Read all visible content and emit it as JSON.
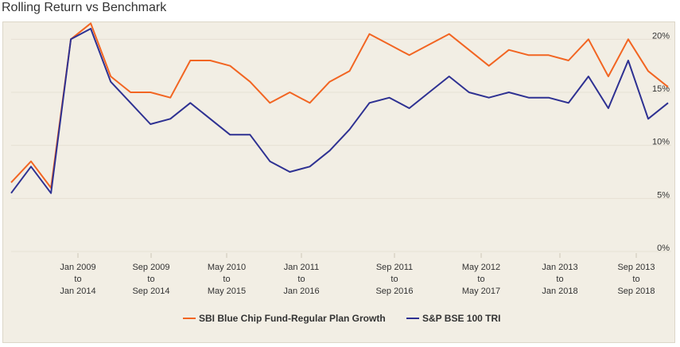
{
  "page_title": "Rolling Return vs Benchmark",
  "colors": {
    "fund": "#f26522",
    "benchmark": "#2e3192",
    "background": "#f2eee4",
    "grid": "#e6e1d5"
  },
  "chart_data": {
    "type": "line",
    "title": "Rolling Return vs Benchmark",
    "grid": true,
    "legend_position": "bottom",
    "ylim": [
      0,
      21
    ],
    "y_ticks": [
      "0%",
      "5%",
      "10%",
      "15%",
      "20%"
    ],
    "x_ticks": [
      {
        "line1": "Jan 2009",
        "line2": "to",
        "line3": "Jan 2014"
      },
      {
        "line1": "Sep 2009",
        "line2": "to",
        "line3": "Sep 2014"
      },
      {
        "line1": "May 2010",
        "line2": "to",
        "line3": "May 2015"
      },
      {
        "line1": "Jan 2011",
        "line2": "to",
        "line3": "Jan 2016"
      },
      {
        "line1": "Sep 2011",
        "line2": "to",
        "line3": "Sep 2016"
      },
      {
        "line1": "May 2012",
        "line2": "to",
        "line3": "May 2017"
      },
      {
        "line1": "Jan 2013",
        "line2": "to",
        "line3": "Jan 2018"
      },
      {
        "line1": "Sep 2013",
        "line2": "to",
        "line3": "Sep 2018"
      }
    ],
    "x": [
      "2008-07",
      "2008-09",
      "2008-11",
      "2009-01",
      "2009-03",
      "2009-05",
      "2009-07",
      "2009-09",
      "2009-11",
      "2010-01",
      "2010-03",
      "2010-05",
      "2010-07",
      "2010-09",
      "2010-11",
      "2011-01",
      "2011-03",
      "2011-05",
      "2011-07",
      "2011-09",
      "2011-11",
      "2012-01",
      "2012-03",
      "2012-05",
      "2012-07",
      "2012-09",
      "2012-11",
      "2013-01",
      "2013-03",
      "2013-05",
      "2013-07",
      "2013-09",
      "2013-11",
      "2014-01"
    ],
    "series": [
      {
        "name": "SBI Blue Chip Fund-Regular Plan Growth",
        "values": [
          6.5,
          8.5,
          6.0,
          20.0,
          21.5,
          16.5,
          15.0,
          15.0,
          14.5,
          18.0,
          18.0,
          17.5,
          16.0,
          14.0,
          15.0,
          14.0,
          16.0,
          17.0,
          20.5,
          19.5,
          18.5,
          19.5,
          20.5,
          19.0,
          17.5,
          19.0,
          18.5,
          18.5,
          18.0,
          20.0,
          16.5,
          20.0,
          17.0,
          15.5
        ]
      },
      {
        "name": "S&P BSE 100 TRI",
        "values": [
          5.5,
          8.0,
          5.5,
          20.0,
          21.0,
          16.0,
          14.0,
          12.0,
          12.5,
          14.0,
          12.5,
          11.0,
          11.0,
          8.5,
          7.5,
          8.0,
          9.5,
          11.5,
          14.0,
          14.5,
          13.5,
          15.0,
          16.5,
          15.0,
          14.5,
          15.0,
          14.5,
          14.5,
          14.0,
          16.5,
          13.5,
          18.0,
          12.5,
          14.0
        ]
      }
    ]
  }
}
